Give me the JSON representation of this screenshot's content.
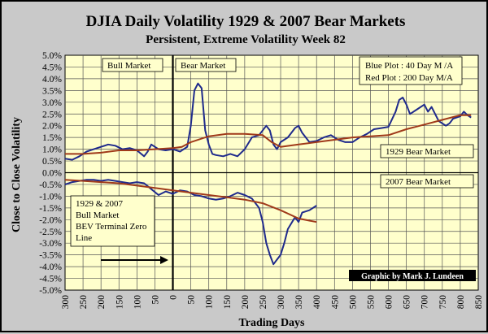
{
  "chart_data": {
    "type": "line",
    "title": "DJIA Daily Volatility 1929 & 2007 Bear Markets",
    "subtitle": "Persistent, Extreme Volatility  Week 82",
    "xlabel": "Trading Days",
    "ylabel": "Close to Close Volatility",
    "xlim": [
      -300,
      850
    ],
    "ylim": [
      -5.0,
      5.0
    ],
    "x_ticks": [
      "300",
      "250",
      "200",
      "150",
      "100",
      "50",
      "0",
      "50",
      "100",
      "150",
      "200",
      "250",
      "300",
      "350",
      "400",
      "450",
      "500",
      "550",
      "600",
      "650",
      "700",
      "750",
      "800",
      "850"
    ],
    "y_ticks": [
      "5.0%",
      "4.5%",
      "4.0%",
      "3.5%",
      "3.0%",
      "2.5%",
      "2.0%",
      "1.5%",
      "1.0%",
      "0.5%",
      "0.0%",
      "-0.5%",
      "-1.0%",
      "-1.5%",
      "-2.0%",
      "-2.5%",
      "-3.0%",
      "-3.5%",
      "-4.0%",
      "-4.5%",
      "-5.0%"
    ],
    "grid": true,
    "annotations": {
      "bull_market": "Bull Market",
      "bear_market": "Bear Market",
      "legend_blue": "Blue Plot : 40 Day M /A",
      "legend_red": "Red Plot : 200 Day M/A",
      "bear_1929": "1929 Bear Market",
      "bear_2007": "2007 Bear Market",
      "bev_line1": "1929 & 2007",
      "bev_line2": "Bull Market",
      "bev_line3": "BEV Terminal Zero",
      "bev_line4": "Line",
      "credit": "Graphic by Mark J. Lundeen"
    },
    "series": [
      {
        "color": "#1f2a8c",
        "x": [
          -300,
          -280,
          -260,
          -240,
          -220,
          -200,
          -180,
          -160,
          -140,
          -120,
          -100,
          -80,
          -70,
          -60,
          -40,
          -20,
          0,
          20,
          40,
          50,
          60,
          70,
          80,
          90,
          100,
          110,
          120,
          140,
          160,
          180,
          200,
          220,
          240,
          260,
          270,
          280,
          290,
          300,
          320,
          340,
          350,
          360,
          380,
          400,
          420,
          440,
          460,
          480,
          500,
          520,
          540,
          560,
          580,
          600,
          620,
          630,
          640,
          650,
          660,
          680,
          700,
          710,
          720,
          740,
          760,
          770,
          780,
          800,
          810,
          820,
          830
        ],
        "y": [
          0.6,
          0.55,
          0.7,
          0.9,
          1.0,
          1.1,
          1.2,
          1.15,
          1.0,
          1.05,
          0.95,
          0.7,
          0.9,
          1.2,
          1.0,
          0.95,
          1.0,
          0.9,
          1.1,
          2.0,
          3.5,
          3.8,
          3.6,
          1.8,
          1.2,
          0.8,
          0.75,
          0.7,
          0.8,
          0.7,
          1.0,
          1.5,
          1.6,
          2.0,
          1.8,
          1.2,
          1.0,
          1.3,
          1.5,
          1.9,
          2.0,
          1.7,
          1.3,
          1.35,
          1.5,
          1.6,
          1.4,
          1.3,
          1.3,
          1.5,
          1.65,
          1.85,
          1.9,
          1.95,
          2.6,
          3.1,
          3.2,
          2.9,
          2.5,
          2.7,
          2.9,
          2.6,
          2.8,
          2.2,
          2.0,
          2.1,
          2.3,
          2.4,
          2.6,
          2.45,
          2.35
        ]
      },
      {
        "color": "#a03a1a",
        "x": [
          -300,
          -250,
          -200,
          -150,
          -100,
          -50,
          0,
          25,
          50,
          100,
          150,
          200,
          250,
          275,
          300,
          350,
          400,
          450,
          500,
          550,
          600,
          650,
          700,
          750,
          800,
          830
        ],
        "y": [
          0.8,
          0.8,
          0.85,
          0.95,
          0.95,
          1.0,
          1.05,
          1.1,
          1.3,
          1.55,
          1.65,
          1.65,
          1.6,
          1.3,
          1.1,
          1.2,
          1.3,
          1.4,
          1.5,
          1.55,
          1.6,
          1.85,
          2.05,
          2.25,
          2.45,
          2.45
        ]
      },
      {
        "color": "#1f2a8c",
        "x": [
          -300,
          -280,
          -260,
          -240,
          -220,
          -200,
          -180,
          -160,
          -140,
          -120,
          -100,
          -80,
          -60,
          -40,
          -20,
          0,
          20,
          40,
          60,
          80,
          100,
          120,
          140,
          160,
          180,
          200,
          220,
          240,
          250,
          260,
          270,
          280,
          290,
          300,
          310,
          320,
          340,
          350,
          360,
          380,
          400
        ],
        "y": [
          -0.5,
          -0.4,
          -0.35,
          -0.3,
          -0.3,
          -0.35,
          -0.3,
          -0.35,
          -0.4,
          -0.45,
          -0.4,
          -0.45,
          -0.7,
          -0.95,
          -0.8,
          -0.9,
          -0.75,
          -0.8,
          -0.95,
          -1.0,
          -1.1,
          -1.15,
          -1.1,
          -1.0,
          -0.85,
          -0.95,
          -1.1,
          -1.5,
          -2.1,
          -3.0,
          -3.5,
          -3.9,
          -3.7,
          -3.5,
          -3.0,
          -2.4,
          -1.9,
          -2.1,
          -1.7,
          -1.6,
          -1.4
        ]
      },
      {
        "color": "#a03a1a",
        "x": [
          -300,
          -250,
          -200,
          -150,
          -100,
          -50,
          0,
          50,
          100,
          150,
          200,
          250,
          300,
          350,
          400
        ],
        "y": [
          -0.3,
          -0.35,
          -0.4,
          -0.45,
          -0.55,
          -0.65,
          -0.75,
          -0.85,
          -0.95,
          -1.05,
          -1.15,
          -1.3,
          -1.6,
          -1.95,
          -2.1
        ]
      }
    ]
  }
}
